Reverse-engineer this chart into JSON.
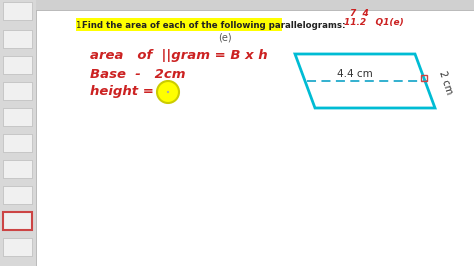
{
  "bg_color": "#c8c8c8",
  "sidebar_bg": "#d8d8d8",
  "main_bg": "#ffffff",
  "toolbar_bg": "#d0d0d0",
  "title_text": "1. Find the area of each of the following parallelograms:",
  "title_prefix": "1. ",
  "title_bold": "Find the area of each of the following parallelograms:",
  "highlight_color": "#ffff00",
  "label_e": "(e)",
  "handwritten_color": "#cc2222",
  "parallelogram_color": "#00bcd4",
  "dashed_color": "#22aacc",
  "right_angle_color": "#cc4444",
  "dim_44": "4.4 cm",
  "dim_2": "2 cm",
  "top_label1": "¬¬",
  "top_label2": "11.2   Q1(e)",
  "formula_text": "area   of  ||gram = B x h",
  "base_text": "Base  -   2cm",
  "height_text": "height = ",
  "circle_color": "#ffff00",
  "circle_edge": "#cccc00",
  "thumb_active_color": "#cc4444",
  "thumb_inactive_color": "#e8e8e8"
}
